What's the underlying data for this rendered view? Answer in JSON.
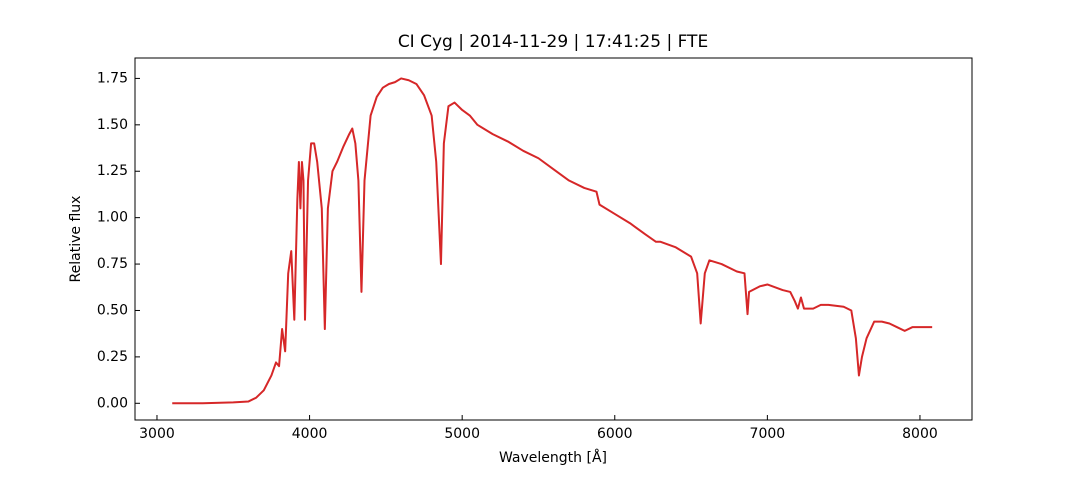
{
  "chart_data": {
    "type": "line",
    "title": "CI Cyg | 2014-11-29 | 17:41:25 | FTE",
    "x_label": "Wavelength [Å]",
    "y_label": "Relative flux",
    "x": [
      3100,
      3300,
      3500,
      3600,
      3650,
      3700,
      3750,
      3780,
      3800,
      3820,
      3840,
      3860,
      3880,
      3900,
      3920,
      3930,
      3940,
      3950,
      3960,
      3970,
      3990,
      4010,
      4030,
      4050,
      4080,
      4100,
      4120,
      4150,
      4180,
      4220,
      4260,
      4280,
      4300,
      4320,
      4340,
      4360,
      4400,
      4440,
      4480,
      4520,
      4560,
      4600,
      4650,
      4700,
      4750,
      4800,
      4830,
      4861,
      4880,
      4910,
      4950,
      5000,
      5050,
      5100,
      5200,
      5300,
      5400,
      5500,
      5600,
      5700,
      5800,
      5880,
      5900,
      6000,
      6100,
      6200,
      6270,
      6300,
      6400,
      6500,
      6540,
      6563,
      6590,
      6620,
      6700,
      6800,
      6850,
      6870,
      6880,
      6950,
      7000,
      7100,
      7150,
      7180,
      7200,
      7220,
      7240,
      7300,
      7350,
      7400,
      7500,
      7550,
      7580,
      7600,
      7620,
      7650,
      7700,
      7750,
      7800,
      7850,
      7900,
      7950,
      8000,
      8080
    ],
    "series": [
      {
        "color": "#d62728",
        "values": [
          0.0,
          0.0,
          0.005,
          0.01,
          0.03,
          0.07,
          0.15,
          0.22,
          0.2,
          0.4,
          0.28,
          0.7,
          0.82,
          0.45,
          1.1,
          1.3,
          1.05,
          1.3,
          1.2,
          0.45,
          1.2,
          1.4,
          1.4,
          1.3,
          1.05,
          0.4,
          1.05,
          1.25,
          1.3,
          1.38,
          1.45,
          1.48,
          1.4,
          1.2,
          0.6,
          1.2,
          1.55,
          1.65,
          1.7,
          1.72,
          1.73,
          1.75,
          1.74,
          1.72,
          1.66,
          1.55,
          1.3,
          0.75,
          1.4,
          1.6,
          1.62,
          1.58,
          1.55,
          1.5,
          1.45,
          1.41,
          1.36,
          1.32,
          1.26,
          1.2,
          1.16,
          1.14,
          1.07,
          1.02,
          0.97,
          0.91,
          0.87,
          0.87,
          0.84,
          0.79,
          0.7,
          0.43,
          0.7,
          0.77,
          0.75,
          0.71,
          0.7,
          0.48,
          0.6,
          0.63,
          0.64,
          0.61,
          0.6,
          0.55,
          0.51,
          0.57,
          0.51,
          0.51,
          0.53,
          0.53,
          0.52,
          0.5,
          0.35,
          0.15,
          0.25,
          0.35,
          0.44,
          0.44,
          0.43,
          0.41,
          0.39,
          0.41,
          0.41,
          0.41
        ]
      }
    ],
    "xlim": [
      2856,
      8341
    ],
    "ylim": [
      -0.09,
      1.86
    ],
    "xticks": [
      3000,
      4000,
      5000,
      6000,
      7000,
      8000
    ],
    "yticks": [
      {
        "value": 0,
        "label": "0.00"
      },
      {
        "value": 0.25,
        "label": "0.25"
      },
      {
        "value": 0.5,
        "label": "0.50"
      },
      {
        "value": 0.75,
        "label": "0.75"
      },
      {
        "value": 1,
        "label": "1.00"
      },
      {
        "value": 1.25,
        "label": "1.25"
      },
      {
        "value": 1.5,
        "label": "1.50"
      },
      {
        "value": 1.75,
        "label": "1.75"
      }
    ]
  }
}
